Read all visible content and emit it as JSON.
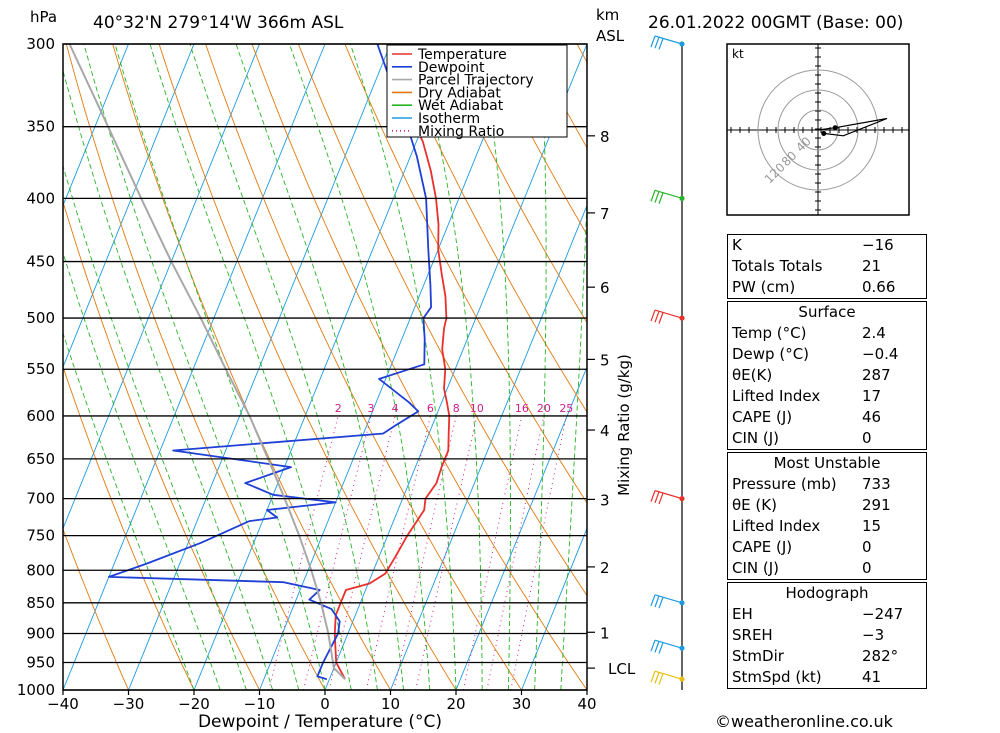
{
  "header": {
    "location": "40°32'N  279°14'W  366m  ASL",
    "datetime": "26.01.2022  00GMT  (Base: 00)",
    "pressure_unit": "hPa",
    "height_unit_top": "km",
    "height_unit_bottom": "ASL"
  },
  "footer": {
    "copyright": "©weatheronline.co.uk"
  },
  "chart_data": {
    "type": "line",
    "title": "",
    "xlabel": "Dewpoint / Temperature (°C)",
    "ylabel": "hPa",
    "right_axis_label": "Mixing Ratio (g/kg)",
    "xlim": [
      -40,
      40
    ],
    "ylim": [
      1000,
      300
    ],
    "skew": 40,
    "x_ticks": [
      "−40",
      "−30",
      "−20",
      "−10",
      "0",
      "10",
      "20",
      "30",
      "40"
    ],
    "pressure_ticks": [
      300,
      350,
      400,
      450,
      500,
      550,
      600,
      650,
      700,
      750,
      800,
      850,
      900,
      950,
      1000
    ],
    "km_ticks": [
      {
        "km": "1",
        "p": 898
      },
      {
        "km": "2",
        "p": 795
      },
      {
        "km": "3",
        "p": 701
      },
      {
        "km": "4",
        "p": 616
      },
      {
        "km": "5",
        "p": 540
      },
      {
        "km": "6",
        "p": 472
      },
      {
        "km": "7",
        "p": 411
      },
      {
        "km": "8",
        "p": 356
      }
    ],
    "lcl": {
      "label": "LCL",
      "p": 960
    },
    "mixing_ratio_labels": [
      "2",
      "3",
      "4",
      "6",
      "8",
      "10",
      "16",
      "20",
      "25"
    ],
    "legend": [
      "Temperature",
      "Dewpoint",
      "Parcel Trajectory",
      "Dry Adiabat",
      "Wet Adiabat",
      "Isotherm",
      "Mixing Ratio"
    ],
    "legend_position": "top-center",
    "colors": {
      "temperature": "#e8302c",
      "dewpoint": "#1f3fd6",
      "parcel": "#a8a8a8",
      "dry_adiabat": "#e07a10",
      "wet_adiabat": "#28b428",
      "isotherm": "#1e9be0",
      "mixing_ratio": "#d0208a"
    },
    "series": [
      {
        "name": "Temperature",
        "points": [
          [
            980,
            2.4
          ],
          [
            950,
            0.0
          ],
          [
            920,
            -1.2
          ],
          [
            900,
            -2.0
          ],
          [
            870,
            -3.0
          ],
          [
            850,
            -3.0
          ],
          [
            830,
            -3.0
          ],
          [
            820,
            0.2
          ],
          [
            805,
            2.0
          ],
          [
            780,
            2.5
          ],
          [
            750,
            3.0
          ],
          [
            715,
            4.0
          ],
          [
            700,
            3.5
          ],
          [
            680,
            4.2
          ],
          [
            660,
            4.0
          ],
          [
            640,
            4.0
          ],
          [
            620,
            3.0
          ],
          [
            600,
            2.0
          ],
          [
            585,
            0.8
          ],
          [
            570,
            -0.5
          ],
          [
            550,
            -1.5
          ],
          [
            530,
            -3.2
          ],
          [
            510,
            -4.2
          ],
          [
            500,
            -4.5
          ],
          [
            480,
            -6.0
          ],
          [
            460,
            -8.0
          ],
          [
            440,
            -10.0
          ],
          [
            420,
            -11.5
          ],
          [
            400,
            -13.5
          ],
          [
            380,
            -16.0
          ],
          [
            360,
            -19.0
          ],
          [
            350,
            -21.0
          ],
          [
            330,
            -24.0
          ],
          [
            300,
            -29.0
          ]
        ]
      },
      {
        "name": "Dewpoint",
        "points": [
          [
            980,
            -0.4
          ],
          [
            975,
            -2.0
          ],
          [
            950,
            -2.0
          ],
          [
            900,
            -1.5
          ],
          [
            880,
            -2.0
          ],
          [
            860,
            -4.0
          ],
          [
            845,
            -8.0
          ],
          [
            830,
            -7.0
          ],
          [
            818,
            -13.0
          ],
          [
            810,
            -40.0
          ],
          [
            790,
            -35.0
          ],
          [
            760,
            -28.0
          ],
          [
            730,
            -22.0
          ],
          [
            725,
            -18.0
          ],
          [
            715,
            -20.0
          ],
          [
            705,
            -10.0
          ],
          [
            695,
            -20.0
          ],
          [
            680,
            -25.0
          ],
          [
            660,
            -19.0
          ],
          [
            640,
            -38.0
          ],
          [
            620,
            -7.0
          ],
          [
            610,
            -5.5
          ],
          [
            595,
            -3.0
          ],
          [
            585,
            -5.0
          ],
          [
            560,
            -11.0
          ],
          [
            545,
            -5.0
          ],
          [
            520,
            -6.5
          ],
          [
            500,
            -8.0
          ],
          [
            490,
            -7.5
          ],
          [
            470,
            -9.0
          ],
          [
            440,
            -11.5
          ],
          [
            400,
            -15.0
          ],
          [
            370,
            -19.0
          ],
          [
            340,
            -24.0
          ],
          [
            320,
            -28.0
          ],
          [
            300,
            -32.0
          ]
        ]
      },
      {
        "name": "Parcel Trajectory",
        "points": [
          [
            980,
            2.4
          ],
          [
            960,
            0.0
          ],
          [
            900,
            -3.0
          ],
          [
            850,
            -6.0
          ],
          [
            800,
            -9.5
          ],
          [
            750,
            -13.5
          ],
          [
            700,
            -18.0
          ],
          [
            650,
            -23.0
          ],
          [
            600,
            -28.5
          ],
          [
            550,
            -35.0
          ],
          [
            500,
            -42.0
          ],
          [
            450,
            -50.0
          ],
          [
            400,
            -58.5
          ],
          [
            350,
            -68.0
          ],
          [
            300,
            -79.0
          ]
        ]
      }
    ],
    "wind_barbs": [
      {
        "p": 300,
        "color": "#1e9be0"
      },
      {
        "p": 400,
        "color": "#28b428"
      },
      {
        "p": 500,
        "color": "#e8302c"
      },
      {
        "p": 700,
        "color": "#e8302c"
      },
      {
        "p": 850,
        "color": "#1e9be0"
      },
      {
        "p": 925,
        "color": "#1e9be0"
      },
      {
        "p": 980,
        "color": "#e8c010"
      }
    ],
    "hodograph": {
      "unit": "kt",
      "ring_labels": [
        "40",
        "80",
        "120"
      ],
      "trace": [
        [
          0,
          0
        ],
        [
          15,
          2
        ],
        [
          60,
          10
        ],
        [
          22,
          -5
        ],
        [
          5,
          -3
        ]
      ]
    }
  },
  "indices": {
    "k": {
      "label": "K",
      "value": "−16"
    },
    "totals": {
      "label": "Totals Totals",
      "value": "21"
    },
    "pw": {
      "label": "PW (cm)",
      "value": "0.66"
    },
    "surface": {
      "title": "Surface",
      "rows": [
        {
          "label": "Temp (°C)",
          "value": "2.4"
        },
        {
          "label": "Dewp (°C)",
          "value": "−0.4"
        },
        {
          "label": "θE(K)",
          "value": "287"
        },
        {
          "label": "Lifted Index",
          "value": "17"
        },
        {
          "label": "CAPE (J)",
          "value": "46"
        },
        {
          "label": "CIN (J)",
          "value": "0"
        }
      ]
    },
    "most_unstable": {
      "title": "Most Unstable",
      "rows": [
        {
          "label": "Pressure (mb)",
          "value": "733"
        },
        {
          "label": "θE (K)",
          "value": "291"
        },
        {
          "label": "Lifted Index",
          "value": "15"
        },
        {
          "label": "CAPE (J)",
          "value": "0"
        },
        {
          "label": "CIN (J)",
          "value": "0"
        }
      ]
    },
    "hodograph": {
      "title": "Hodograph",
      "rows": [
        {
          "label": "EH",
          "value": "−247"
        },
        {
          "label": "SREH",
          "value": "−3"
        },
        {
          "label": "StmDir",
          "value": "282°"
        },
        {
          "label": "StmSpd (kt)",
          "value": "41"
        }
      ]
    }
  }
}
